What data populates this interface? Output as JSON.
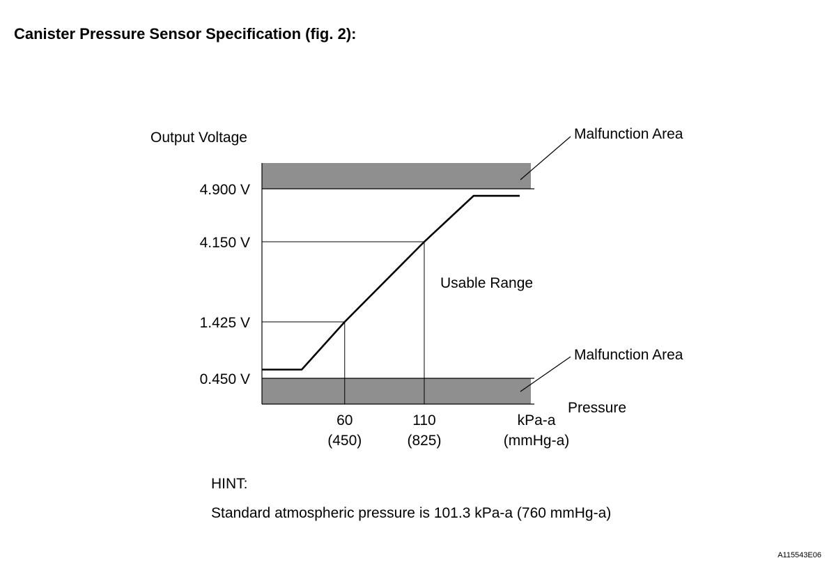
{
  "title": "Canister Pressure Sensor Specification (fig. 2):",
  "hint": {
    "label": "HINT:",
    "text": "Standard atmospheric pressure is 101.3 kPa-a (760 mmHg-a)"
  },
  "figure_code": "A115543E06",
  "colors": {
    "malfunction_band": "#8f8f8f",
    "line": "#000000"
  },
  "chart_data": {
    "type": "line",
    "title": "",
    "ylabel": "Output Voltage",
    "xlabel": "Pressure",
    "x_unit_lines": [
      "kPa-a",
      "(mmHg-a)"
    ],
    "y_ticks": [
      {
        "value": 0.45,
        "label": "0.450 V"
      },
      {
        "value": 1.425,
        "label": "1.425 V"
      },
      {
        "value": 4.15,
        "label": "4.150 V"
      },
      {
        "value": 4.9,
        "label": "4.900 V"
      }
    ],
    "x_ticks": [
      {
        "value": 60,
        "label": "60",
        "sublabel": "(450)"
      },
      {
        "value": 110,
        "label": "110",
        "sublabel": "(825)"
      }
    ],
    "xlim": [
      8,
      177
    ],
    "series": [
      {
        "values": [
          {
            "x": 8,
            "y": 0.6
          },
          {
            "x": 33,
            "y": 0.6
          },
          {
            "x": 60,
            "y": 1.425
          },
          {
            "x": 110,
            "y": 4.15
          },
          {
            "x": 141,
            "y": 4.8
          },
          {
            "x": 170,
            "y": 4.8
          }
        ]
      }
    ],
    "reference_lines": [
      {
        "x": 60,
        "y": 1.425
      },
      {
        "x": 110,
        "y": 4.15
      }
    ],
    "regions": [
      {
        "label": "Malfunction Area",
        "position": "above 4.900 V"
      },
      {
        "label": "Usable Range",
        "position": "between 0.450 V and 4.900 V"
      },
      {
        "label": "Malfunction Area",
        "position": "below 0.450 V"
      }
    ]
  }
}
